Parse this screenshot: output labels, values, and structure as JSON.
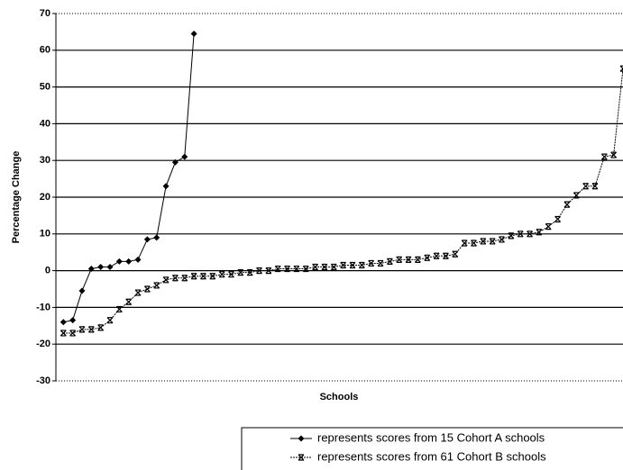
{
  "chart_data": {
    "type": "line",
    "y_label": "Percentage Change",
    "x_label": "Schools",
    "ylim": [
      -30,
      70
    ],
    "yticks": [
      -30,
      -20,
      -10,
      0,
      10,
      20,
      30,
      40,
      50,
      60,
      70
    ],
    "xlim": [
      -0.8,
      60
    ],
    "grid": true,
    "series": [
      {
        "name": "represents scores from 15 Cohort A schools",
        "color": "#000000",
        "marker": "diamond",
        "values": [
          -14,
          -13.5,
          -5.5,
          0.5,
          1,
          1,
          2.5,
          2.5,
          3,
          8.5,
          9,
          23,
          29.5,
          31,
          64.5
        ]
      },
      {
        "name": "represents scores from 61 Cohort B schools",
        "color": "#000000",
        "marker": "x",
        "values": [
          -17,
          -17,
          -16,
          -16,
          -15.5,
          -13.5,
          -10.5,
          -8.5,
          -6,
          -5,
          -4,
          -2.5,
          -2,
          -2,
          -1.5,
          -1.5,
          -1.5,
          -1,
          -1,
          -0.5,
          -0.5,
          0,
          0,
          0.5,
          0.5,
          0.5,
          0.5,
          1,
          1,
          1,
          1.5,
          1.5,
          1.5,
          2,
          2,
          2.5,
          3,
          3,
          3,
          3.5,
          4,
          4,
          4.5,
          7.5,
          7.5,
          8,
          8,
          8.5,
          9.5,
          10,
          10,
          10.5,
          12,
          14,
          18,
          20.5,
          23,
          23,
          31,
          31.5,
          55
        ]
      }
    ]
  }
}
